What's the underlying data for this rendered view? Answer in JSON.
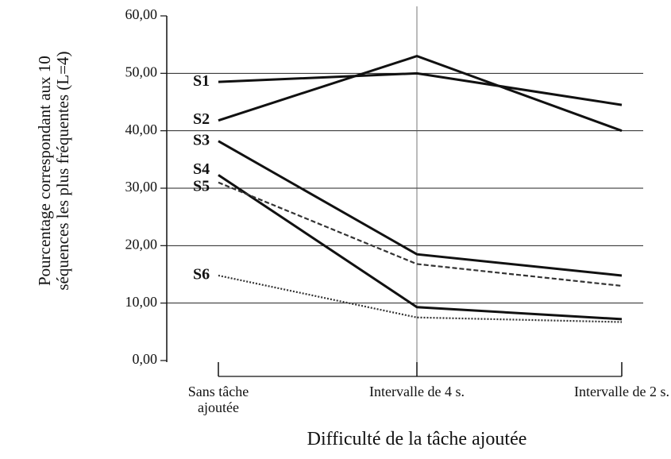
{
  "chart_data": {
    "type": "line",
    "ylabel": "Pourcentage correspondant aux 10 séquences les plus fréquentes (L=4)",
    "xlabel": "Difficulté de la tâche ajoutée",
    "categories": [
      "Sans tâche ajoutée",
      "Intervalle de 4 s.",
      "Intervalle de 2 s."
    ],
    "ylim": [
      0,
      60
    ],
    "yticks": [
      {
        "value": 0,
        "label": "0,00"
      },
      {
        "value": 10,
        "label": "10,00"
      },
      {
        "value": 20,
        "label": "20,00"
      },
      {
        "value": 30,
        "label": "30,00"
      },
      {
        "value": 40,
        "label": "40,00"
      },
      {
        "value": 50,
        "label": "50,00"
      },
      {
        "value": 60,
        "label": "60,00"
      }
    ],
    "grid": true,
    "series": [
      {
        "name": "S1",
        "color": "#111111",
        "style": "solid",
        "values": [
          48.5,
          50,
          44.5
        ]
      },
      {
        "name": "S2",
        "color": "#111111",
        "style": "solid",
        "values": [
          41.8,
          53,
          40
        ]
      },
      {
        "name": "S3",
        "color": "#111111",
        "style": "solid",
        "values": [
          38.2,
          18.5,
          14.8
        ]
      },
      {
        "name": "S4",
        "color": "#111111",
        "style": "solid",
        "values": [
          32.3,
          9.3,
          7.2
        ]
      },
      {
        "name": "S5",
        "color": "#333333",
        "style": "dashed",
        "values": [
          31,
          16.8,
          13
        ]
      },
      {
        "name": "S6",
        "color": "#333333",
        "style": "dotted",
        "values": [
          14.8,
          7.5,
          6.7
        ]
      }
    ]
  }
}
